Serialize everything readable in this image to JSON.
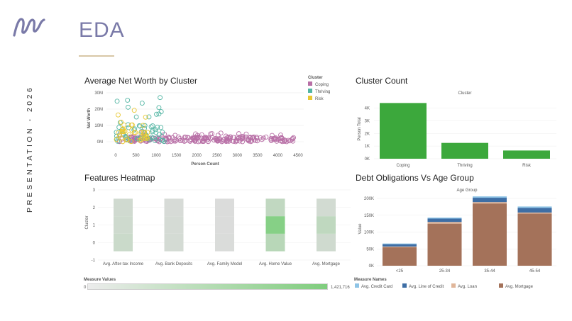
{
  "slide": {
    "title": "EDA",
    "side_label": "PRESENTATION - 2026"
  },
  "colors": {
    "coping": "#b86fa6",
    "thriving": "#52b5a3",
    "risk": "#e8c833",
    "bar_green": "#3ca83c",
    "credit_card": "#8ec4e6",
    "line_of_credit": "#3e6ea5",
    "loan": "#e0b69a",
    "mortgage": "#a4725a"
  },
  "chart_data": [
    {
      "id": "scatter",
      "type": "scatter",
      "title": "Average Net Worth by Cluster",
      "xlabel": "Person Count",
      "ylabel": "Net Worth",
      "xticks": [
        "0",
        "500",
        "1000",
        "1500",
        "2000",
        "2500",
        "3000",
        "3500",
        "4000",
        "4500"
      ],
      "yticks": [
        "0M",
        "10M",
        "20M",
        "30M"
      ],
      "xlim": [
        0,
        4500
      ],
      "ylim": [
        0,
        33
      ],
      "legend_title": "Cluster",
      "legend": [
        "Coping",
        "Thriving",
        "Risk"
      ]
    },
    {
      "id": "cluster_count",
      "type": "bar",
      "title": "Cluster Count",
      "header": "Cluster",
      "ylabel": "Person Total",
      "categories": [
        "Coping",
        "Thriving",
        "Risk"
      ],
      "values": [
        4400,
        1250,
        650
      ],
      "yticks": [
        "0K",
        "1K",
        "2K",
        "3K",
        "4K"
      ],
      "ylim": [
        0,
        4700
      ]
    },
    {
      "id": "heatmap",
      "type": "heatmap",
      "title": "Features Heatmap",
      "ylabel": "Cluster",
      "categories": [
        "Avg. After-tax Income",
        "Avg. Bank Deposits",
        "Avg. Family Model",
        "Avg. Home Value",
        "Avg. Mortgage"
      ],
      "yticks": [
        "-1",
        "0",
        "1",
        "2",
        "3"
      ],
      "ylim": [
        -1,
        3
      ],
      "clusters": [
        0,
        1,
        2
      ],
      "values": [
        [
          0.16,
          0.13,
          0.11
        ],
        [
          0.07,
          0.06,
          0.05
        ],
        [
          0.02,
          0.01,
          0.01
        ],
        [
          0.33,
          0.78,
          0.25
        ],
        [
          0.12,
          0.26,
          0.09
        ]
      ],
      "scale_title": "Measure Values",
      "scale_min": "0",
      "scale_max": "1,421,716"
    },
    {
      "id": "debt",
      "type": "bar",
      "title": "Debt Obligations Vs Age Group",
      "header": "Age Group",
      "ylabel": "Value",
      "categories": [
        "<25",
        "25-34",
        "35-44",
        "45-54"
      ],
      "series": [
        {
          "name": "Avg. Mortgage",
          "values": [
            55000,
            125000,
            185000,
            155000
          ]
        },
        {
          "name": "Avg. Loan",
          "values": [
            2000,
            5000,
            4000,
            3000
          ]
        },
        {
          "name": "Avg. Line of Credit",
          "values": [
            7000,
            10000,
            13000,
            14000
          ]
        },
        {
          "name": "Avg. Credit Card",
          "values": [
            2000,
            3000,
            4000,
            4000
          ]
        }
      ],
      "yticks": [
        "0K",
        "50K",
        "100K",
        "150K",
        "200K"
      ],
      "ylim": [
        0,
        210000
      ],
      "legend_title": "Measure Names",
      "legend": [
        "Avg. Credit Card",
        "Avg. Line of Credit",
        "Avg. Loan",
        "Avg. Mortgage"
      ]
    }
  ]
}
